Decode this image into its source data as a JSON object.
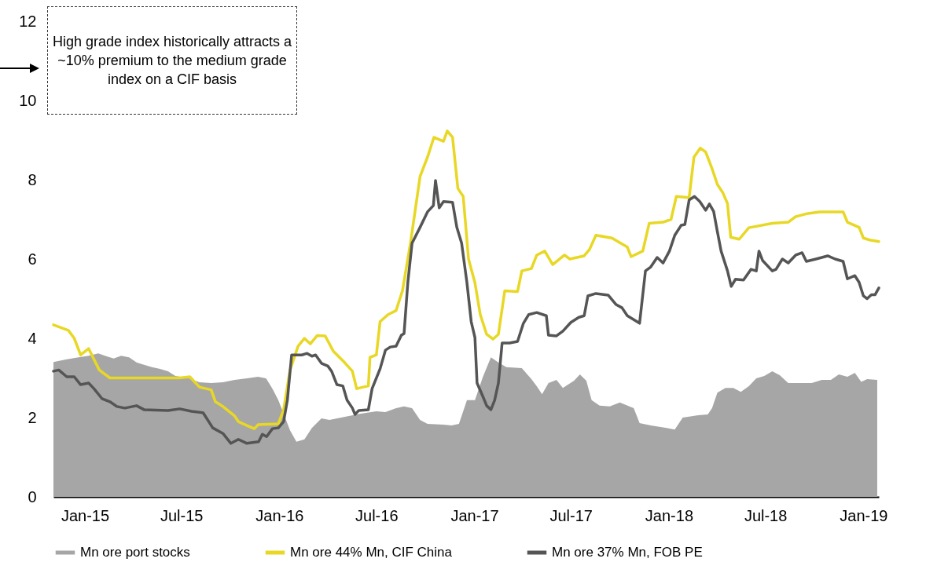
{
  "chart_data": {
    "type": "line",
    "annotations": [
      "High grade index historically attracts a ~10% premium to the medium grade index on a CIF basis"
    ],
    "xlim": [
      "2014-11-03",
      "2019-01-30"
    ],
    "xticks": [
      {
        "value": "2015-01-01",
        "label": "Jan-15"
      },
      {
        "value": "2015-07-01",
        "label": "Jul-15"
      },
      {
        "value": "2016-01-01",
        "label": "Jan-16"
      },
      {
        "value": "2016-07-01",
        "label": "Jul-16"
      },
      {
        "value": "2017-01-01",
        "label": "Jan-17"
      },
      {
        "value": "2017-07-01",
        "label": "Jul-17"
      },
      {
        "value": "2018-01-01",
        "label": "Jan-18"
      },
      {
        "value": "2018-07-01",
        "label": "Jul-18"
      },
      {
        "value": "2019-01-01",
        "label": "Jan-19"
      }
    ],
    "ylim": [
      0,
      12
    ],
    "yticks": [
      0,
      2,
      4,
      6,
      8,
      10,
      12
    ],
    "grid": false,
    "legend": "bottom",
    "series": [
      {
        "name": "Mn ore port stocks",
        "type": "area",
        "color": "#a6a6a6",
        "x": [
          "2014-11-03",
          "2014-11-28",
          "2014-12-20",
          "2015-01-08",
          "2015-01-26",
          "2015-02-10",
          "2015-02-24",
          "2015-03-10",
          "2015-03-25",
          "2015-04-08",
          "2015-04-22",
          "2015-05-07",
          "2015-05-22",
          "2015-06-06",
          "2015-06-20",
          "2015-07-13",
          "2015-08-04",
          "2015-08-26",
          "2015-09-17",
          "2015-10-09",
          "2015-11-01",
          "2015-11-22",
          "2015-12-07",
          "2015-12-19",
          "2015-12-30",
          "2016-01-09",
          "2016-01-21",
          "2016-02-02",
          "2016-02-17",
          "2016-03-02",
          "2016-03-20",
          "2016-04-04",
          "2016-05-03",
          "2016-06-02",
          "2016-07-01",
          "2016-07-18",
          "2016-08-07",
          "2016-08-22",
          "2016-09-06",
          "2016-09-21",
          "2016-10-05",
          "2016-11-04",
          "2016-11-19",
          "2016-12-03",
          "2016-12-18",
          "2017-01-02",
          "2017-01-17",
          "2017-02-01",
          "2017-02-15",
          "2017-03-02",
          "2017-03-31",
          "2017-04-18",
          "2017-04-28",
          "2017-05-08",
          "2017-05-20",
          "2017-06-04",
          "2017-06-16",
          "2017-07-07",
          "2017-07-18",
          "2017-07-30",
          "2017-08-09",
          "2017-08-24",
          "2017-09-12",
          "2017-10-01",
          "2017-10-27",
          "2017-11-07",
          "2017-11-28",
          "2017-12-28",
          "2018-01-12",
          "2018-01-27",
          "2018-02-25",
          "2018-03-15",
          "2018-03-23",
          "2018-04-02",
          "2018-04-17",
          "2018-05-02",
          "2018-05-16",
          "2018-05-31",
          "2018-06-14",
          "2018-06-29",
          "2018-07-14",
          "2018-07-28",
          "2018-08-13",
          "2018-09-11",
          "2018-09-26",
          "2018-10-15",
          "2018-11-01",
          "2018-11-16",
          "2018-12-02",
          "2018-12-16",
          "2018-12-28",
          "2019-01-08",
          "2019-01-27"
        ],
        "values": [
          3.4,
          3.47,
          3.52,
          3.56,
          3.62,
          3.55,
          3.49,
          3.56,
          3.52,
          3.39,
          3.33,
          3.27,
          3.23,
          3.17,
          3.05,
          3.0,
          2.89,
          2.87,
          2.89,
          2.95,
          2.99,
          3.03,
          2.99,
          2.73,
          2.44,
          2.1,
          1.68,
          1.39,
          1.45,
          1.74,
          1.98,
          1.94,
          2.02,
          2.1,
          2.16,
          2.14,
          2.24,
          2.28,
          2.24,
          1.94,
          1.84,
          1.82,
          1.8,
          1.84,
          2.44,
          2.44,
          3.03,
          3.52,
          3.39,
          3.27,
          3.25,
          2.97,
          2.79,
          2.59,
          2.87,
          2.95,
          2.75,
          2.93,
          3.09,
          2.93,
          2.44,
          2.3,
          2.28,
          2.38,
          2.24,
          1.86,
          1.8,
          1.74,
          1.7,
          2.0,
          2.06,
          2.08,
          2.24,
          2.63,
          2.75,
          2.75,
          2.65,
          2.79,
          2.99,
          3.05,
          3.17,
          3.07,
          2.87,
          2.87,
          2.87,
          2.95,
          2.95,
          3.09,
          3.03,
          3.13,
          2.9,
          2.97,
          2.95
        ]
      },
      {
        "name": "Mn ore 44% Mn, CIF China",
        "color": "#e8d825",
        "x": [
          "2014-11-03",
          "2014-12-01",
          "2014-12-12",
          "2014-12-24",
          "2015-01-08",
          "2015-01-28",
          "2015-02-17",
          "2015-03-01",
          "2015-05-01",
          "2015-06-28",
          "2015-07-17",
          "2015-08-04",
          "2015-08-26",
          "2015-09-03",
          "2015-09-17",
          "2015-10-09",
          "2015-10-16",
          "2015-11-01",
          "2015-11-15",
          "2015-11-22",
          "2015-12-30",
          "2016-01-09",
          "2016-01-21",
          "2016-02-05",
          "2016-02-17",
          "2016-02-28",
          "2016-03-12",
          "2016-03-27",
          "2016-04-11",
          "2016-05-03",
          "2016-05-17",
          "2016-05-25",
          "2016-06-16",
          "2016-06-19",
          "2016-07-01",
          "2016-07-08",
          "2016-07-23",
          "2016-08-07",
          "2016-08-19",
          "2016-09-03",
          "2016-09-21",
          "2016-10-05",
          "2016-10-17",
          "2016-11-04",
          "2016-11-11",
          "2016-11-21",
          "2016-12-01",
          "2016-12-11",
          "2016-12-21",
          "2017-01-02",
          "2017-01-12",
          "2017-01-24",
          "2017-02-05",
          "2017-02-15",
          "2017-02-27",
          "2017-03-23",
          "2017-03-31",
          "2017-04-18",
          "2017-04-28",
          "2017-05-13",
          "2017-05-28",
          "2017-06-19",
          "2017-06-29",
          "2017-07-26",
          "2017-08-05",
          "2017-08-17",
          "2017-09-16",
          "2017-10-15",
          "2017-10-22",
          "2017-11-13",
          "2017-11-25",
          "2017-12-21",
          "2018-01-05",
          "2018-01-15",
          "2018-02-08",
          "2018-02-17",
          "2018-03-01",
          "2018-03-11",
          "2018-03-23",
          "2018-04-02",
          "2018-04-12",
          "2018-04-21",
          "2018-04-27",
          "2018-05-13",
          "2018-05-31",
          "2018-07-14",
          "2018-08-13",
          "2018-08-27",
          "2018-09-19",
          "2018-10-11",
          "2018-11-24",
          "2018-12-02",
          "2018-12-24",
          "2019-01-01",
          "2019-01-13",
          "2019-01-30"
        ],
        "values": [
          4.34,
          4.2,
          4.0,
          3.58,
          3.74,
          3.2,
          3.0,
          3.0,
          3.0,
          3.0,
          3.03,
          2.77,
          2.7,
          2.4,
          2.28,
          2.04,
          1.9,
          1.8,
          1.72,
          1.82,
          1.84,
          2.2,
          3.2,
          3.8,
          4.0,
          3.86,
          4.07,
          4.06,
          3.68,
          3.38,
          3.17,
          2.73,
          2.8,
          3.52,
          3.58,
          4.42,
          4.6,
          4.7,
          5.2,
          6.4,
          8.08,
          8.57,
          9.07,
          8.97,
          9.23,
          9.07,
          7.78,
          7.58,
          6.0,
          5.4,
          4.6,
          4.1,
          3.98,
          4.1,
          5.2,
          5.18,
          5.7,
          5.76,
          6.1,
          6.2,
          5.86,
          6.1,
          6.0,
          6.08,
          6.24,
          6.6,
          6.53,
          6.3,
          6.06,
          6.2,
          6.9,
          6.93,
          7.0,
          7.58,
          7.55,
          8.57,
          8.8,
          8.7,
          8.28,
          7.88,
          7.68,
          7.4,
          6.55,
          6.5,
          6.79,
          6.9,
          6.93,
          7.07,
          7.15,
          7.19,
          7.19,
          6.93,
          6.8,
          6.53,
          6.48,
          6.44
        ]
      },
      {
        "name": "Mn ore 37% Mn, FOB PE",
        "color": "#555555",
        "x": [
          "2014-11-03",
          "2014-11-13",
          "2014-11-28",
          "2014-12-12",
          "2014-12-24",
          "2015-01-08",
          "2015-01-18",
          "2015-02-02",
          "2015-02-17",
          "2015-03-02",
          "2015-03-17",
          "2015-04-08",
          "2015-04-22",
          "2015-06-06",
          "2015-06-28",
          "2015-07-20",
          "2015-08-11",
          "2015-08-29",
          "2015-09-17",
          "2015-10-02",
          "2015-10-16",
          "2015-11-01",
          "2015-11-23",
          "2015-11-30",
          "2015-12-08",
          "2015-12-19",
          "2015-12-30",
          "2016-01-09",
          "2016-01-16",
          "2016-01-24",
          "2016-02-12",
          "2016-02-22",
          "2016-03-02",
          "2016-03-09",
          "2016-03-20",
          "2016-04-01",
          "2016-04-08",
          "2016-04-18",
          "2016-04-29",
          "2016-05-07",
          "2016-05-17",
          "2016-05-22",
          "2016-05-29",
          "2016-06-16",
          "2016-06-23",
          "2016-07-08",
          "2016-07-18",
          "2016-07-27",
          "2016-08-07",
          "2016-08-17",
          "2016-08-22",
          "2016-08-29",
          "2016-09-06",
          "2016-09-21",
          "2016-10-05",
          "2016-10-16",
          "2016-10-20",
          "2016-10-27",
          "2016-11-04",
          "2016-11-21",
          "2016-11-29",
          "2016-12-08",
          "2016-12-18",
          "2016-12-26",
          "2017-01-02",
          "2017-01-06",
          "2017-01-17",
          "2017-01-24",
          "2017-02-01",
          "2017-02-08",
          "2017-02-15",
          "2017-02-22",
          "2017-03-08",
          "2017-03-23",
          "2017-04-03",
          "2017-04-13",
          "2017-04-28",
          "2017-05-16",
          "2017-05-20",
          "2017-06-04",
          "2017-06-16",
          "2017-07-01",
          "2017-07-16",
          "2017-07-26",
          "2017-08-02",
          "2017-08-17",
          "2017-09-09",
          "2017-09-24",
          "2017-10-05",
          "2017-10-15",
          "2017-11-07",
          "2017-11-18",
          "2017-11-28",
          "2017-12-10",
          "2017-12-21",
          "2018-01-02",
          "2018-01-12",
          "2018-01-24",
          "2018-01-31",
          "2018-02-08",
          "2018-02-18",
          "2018-02-28",
          "2018-03-11",
          "2018-03-18",
          "2018-03-26",
          "2018-04-02",
          "2018-04-09",
          "2018-04-21",
          "2018-04-28",
          "2018-05-06",
          "2018-05-21",
          "2018-06-04",
          "2018-06-14",
          "2018-06-19",
          "2018-06-26",
          "2018-07-14",
          "2018-07-21",
          "2018-08-02",
          "2018-08-13",
          "2018-08-27",
          "2018-09-08",
          "2018-09-16",
          "2018-10-04",
          "2018-10-26",
          "2018-11-09",
          "2018-11-24",
          "2018-12-02",
          "2018-12-16",
          "2018-12-24",
          "2019-01-01",
          "2019-01-08",
          "2019-01-16",
          "2019-01-23",
          "2019-01-30"
        ],
        "values": [
          3.17,
          3.2,
          3.03,
          3.03,
          2.83,
          2.87,
          2.73,
          2.48,
          2.4,
          2.28,
          2.24,
          2.3,
          2.2,
          2.18,
          2.22,
          2.16,
          2.12,
          1.74,
          1.6,
          1.35,
          1.45,
          1.35,
          1.39,
          1.58,
          1.52,
          1.72,
          1.74,
          1.9,
          2.44,
          3.58,
          3.58,
          3.62,
          3.55,
          3.58,
          3.37,
          3.3,
          3.17,
          2.83,
          2.8,
          2.44,
          2.24,
          2.08,
          2.18,
          2.2,
          2.73,
          3.23,
          3.7,
          3.78,
          3.8,
          4.08,
          4.12,
          5.4,
          6.4,
          6.8,
          7.19,
          7.35,
          7.98,
          7.29,
          7.45,
          7.43,
          6.8,
          6.4,
          5.4,
          4.42,
          4.02,
          2.87,
          2.53,
          2.3,
          2.2,
          2.44,
          2.87,
          3.88,
          3.88,
          3.92,
          4.38,
          4.6,
          4.65,
          4.57,
          4.08,
          4.06,
          4.18,
          4.4,
          4.53,
          4.57,
          5.07,
          5.13,
          5.09,
          4.85,
          4.77,
          4.57,
          4.38,
          5.7,
          5.8,
          6.04,
          5.9,
          6.2,
          6.6,
          6.85,
          6.87,
          7.49,
          7.58,
          7.45,
          7.23,
          7.39,
          7.2,
          6.69,
          6.2,
          5.7,
          5.31,
          5.49,
          5.47,
          5.74,
          5.7,
          6.2,
          5.96,
          5.7,
          5.74,
          6.0,
          5.9,
          6.1,
          6.16,
          5.94,
          6.0,
          6.08,
          6.0,
          5.94,
          5.5,
          5.58,
          5.41,
          5.07,
          5.0,
          5.1,
          5.1,
          5.27
        ]
      }
    ]
  }
}
